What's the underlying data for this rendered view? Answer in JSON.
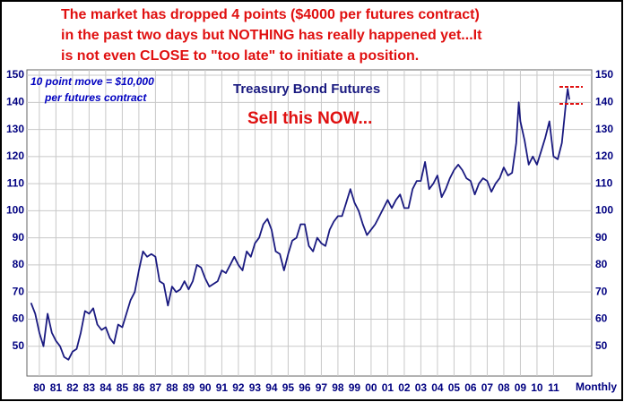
{
  "chart_data": {
    "type": "line",
    "title": "Treasury Bond Futures",
    "headline": [
      "The market has dropped 4 points ($4000 per futures contract)",
      "in the past two days but NOTHING has really happened yet...It",
      "is not even CLOSE to \"too late\" to initiate a position."
    ],
    "annotations": [
      "10 point move = $10,000",
      "per futures contract",
      "Sell this NOW..."
    ],
    "xlabel": "Monthly",
    "x": [
      1979.5,
      1979.75,
      1980.0,
      1980.25,
      1980.5,
      1980.75,
      1981.0,
      1981.25,
      1981.5,
      1981.75,
      1982.0,
      1982.25,
      1982.5,
      1982.75,
      1983.0,
      1983.25,
      1983.5,
      1983.75,
      1984.0,
      1984.25,
      1984.5,
      1984.75,
      1985.0,
      1985.25,
      1985.5,
      1985.75,
      1986.0,
      1986.25,
      1986.5,
      1986.75,
      1987.0,
      1987.25,
      1987.5,
      1987.75,
      1988.0,
      1988.25,
      1988.5,
      1988.75,
      1989.0,
      1989.25,
      1989.5,
      1989.75,
      1990.0,
      1990.25,
      1990.5,
      1990.75,
      1991.0,
      1991.25,
      1991.5,
      1991.75,
      1992.0,
      1992.25,
      1992.5,
      1992.75,
      1993.0,
      1993.25,
      1993.5,
      1993.75,
      1994.0,
      1994.25,
      1994.5,
      1994.75,
      1995.0,
      1995.25,
      1995.5,
      1995.75,
      1996.0,
      1996.25,
      1996.5,
      1996.75,
      1997.0,
      1997.25,
      1997.5,
      1997.75,
      1998.0,
      1998.25,
      1998.5,
      1998.75,
      1999.0,
      1999.25,
      1999.5,
      1999.75,
      2000.0,
      2000.25,
      2000.5,
      2000.75,
      2001.0,
      2001.25,
      2001.5,
      2001.75,
      2002.0,
      2002.25,
      2002.5,
      2002.75,
      2003.0,
      2003.25,
      2003.5,
      2003.75,
      2004.0,
      2004.25,
      2004.5,
      2004.75,
      2005.0,
      2005.25,
      2005.5,
      2005.75,
      2006.0,
      2006.25,
      2006.5,
      2006.75,
      2007.0,
      2007.25,
      2007.5,
      2007.75,
      2008.0,
      2008.25,
      2008.5,
      2008.75,
      2008.9,
      2009.0,
      2009.25,
      2009.5,
      2009.75,
      2010.0,
      2010.25,
      2010.5,
      2010.75,
      2011.0,
      2011.25,
      2011.5,
      2011.75,
      2011.85,
      2011.95
    ],
    "series": [
      {
        "name": "Treasury Bond Futures",
        "color": "#1a1a80",
        "values": [
          66,
          62,
          55,
          50,
          62,
          55,
          52,
          50,
          46,
          45,
          48,
          49,
          55,
          63,
          62,
          64,
          58,
          56,
          57,
          53,
          51,
          58,
          57,
          62,
          67,
          70,
          78,
          85,
          83,
          84,
          83,
          74,
          73,
          65,
          72,
          70,
          71,
          74,
          71,
          74,
          80,
          79,
          75,
          72,
          73,
          74,
          78,
          77,
          80,
          83,
          80,
          78,
          85,
          83,
          88,
          90,
          95,
          97,
          93,
          85,
          84,
          78,
          84,
          89,
          90,
          95,
          95,
          87,
          85,
          90,
          88,
          87,
          93,
          96,
          98,
          98,
          103,
          108,
          103,
          100,
          95,
          91,
          93,
          95,
          98,
          101,
          104,
          101,
          104,
          106,
          101,
          101,
          108,
          111,
          111,
          118,
          108,
          110,
          113,
          105,
          108,
          112,
          115,
          117,
          115,
          112,
          111,
          106,
          110,
          112,
          111,
          107,
          110,
          112,
          116,
          113,
          114,
          125,
          140,
          133,
          126,
          117,
          120,
          117,
          122,
          127,
          133,
          120,
          119,
          125,
          140,
          145,
          141
        ]
      }
    ],
    "xlim": [
      1979.25,
      2013.3
    ],
    "ylim": [
      39,
      152
    ],
    "yticks": [
      50,
      60,
      70,
      80,
      90,
      100,
      110,
      120,
      130,
      140,
      150
    ],
    "xticks": [
      {
        "value": 1980,
        "label": "80"
      },
      {
        "value": 1981,
        "label": "81"
      },
      {
        "value": 1982,
        "label": "82"
      },
      {
        "value": 1983,
        "label": "83"
      },
      {
        "value": 1984,
        "label": "84"
      },
      {
        "value": 1985,
        "label": "85"
      },
      {
        "value": 1986,
        "label": "86"
      },
      {
        "value": 1987,
        "label": "87"
      },
      {
        "value": 1988,
        "label": "88"
      },
      {
        "value": 1989,
        "label": "89"
      },
      {
        "value": 1990,
        "label": "90"
      },
      {
        "value": 1991,
        "label": "91"
      },
      {
        "value": 1992,
        "label": "92"
      },
      {
        "value": 1993,
        "label": "93"
      },
      {
        "value": 1994,
        "label": "94"
      },
      {
        "value": 1995,
        "label": "95"
      },
      {
        "value": 1996,
        "label": "96"
      },
      {
        "value": 1997,
        "label": "97"
      },
      {
        "value": 1998,
        "label": "98"
      },
      {
        "value": 1999,
        "label": "99"
      },
      {
        "value": 2000,
        "label": "00"
      },
      {
        "value": 2001,
        "label": "01"
      },
      {
        "value": 2002,
        "label": "02"
      },
      {
        "value": 2003,
        "label": "03"
      },
      {
        "value": 2004,
        "label": "04"
      },
      {
        "value": 2005,
        "label": "05"
      },
      {
        "value": 2006,
        "label": "06"
      },
      {
        "value": 2007,
        "label": "07"
      },
      {
        "value": 2008,
        "label": "08"
      },
      {
        "value": 2009,
        "label": "09"
      },
      {
        "value": 2010,
        "label": "10"
      },
      {
        "value": 2011,
        "label": "11"
      }
    ],
    "grid": true
  }
}
